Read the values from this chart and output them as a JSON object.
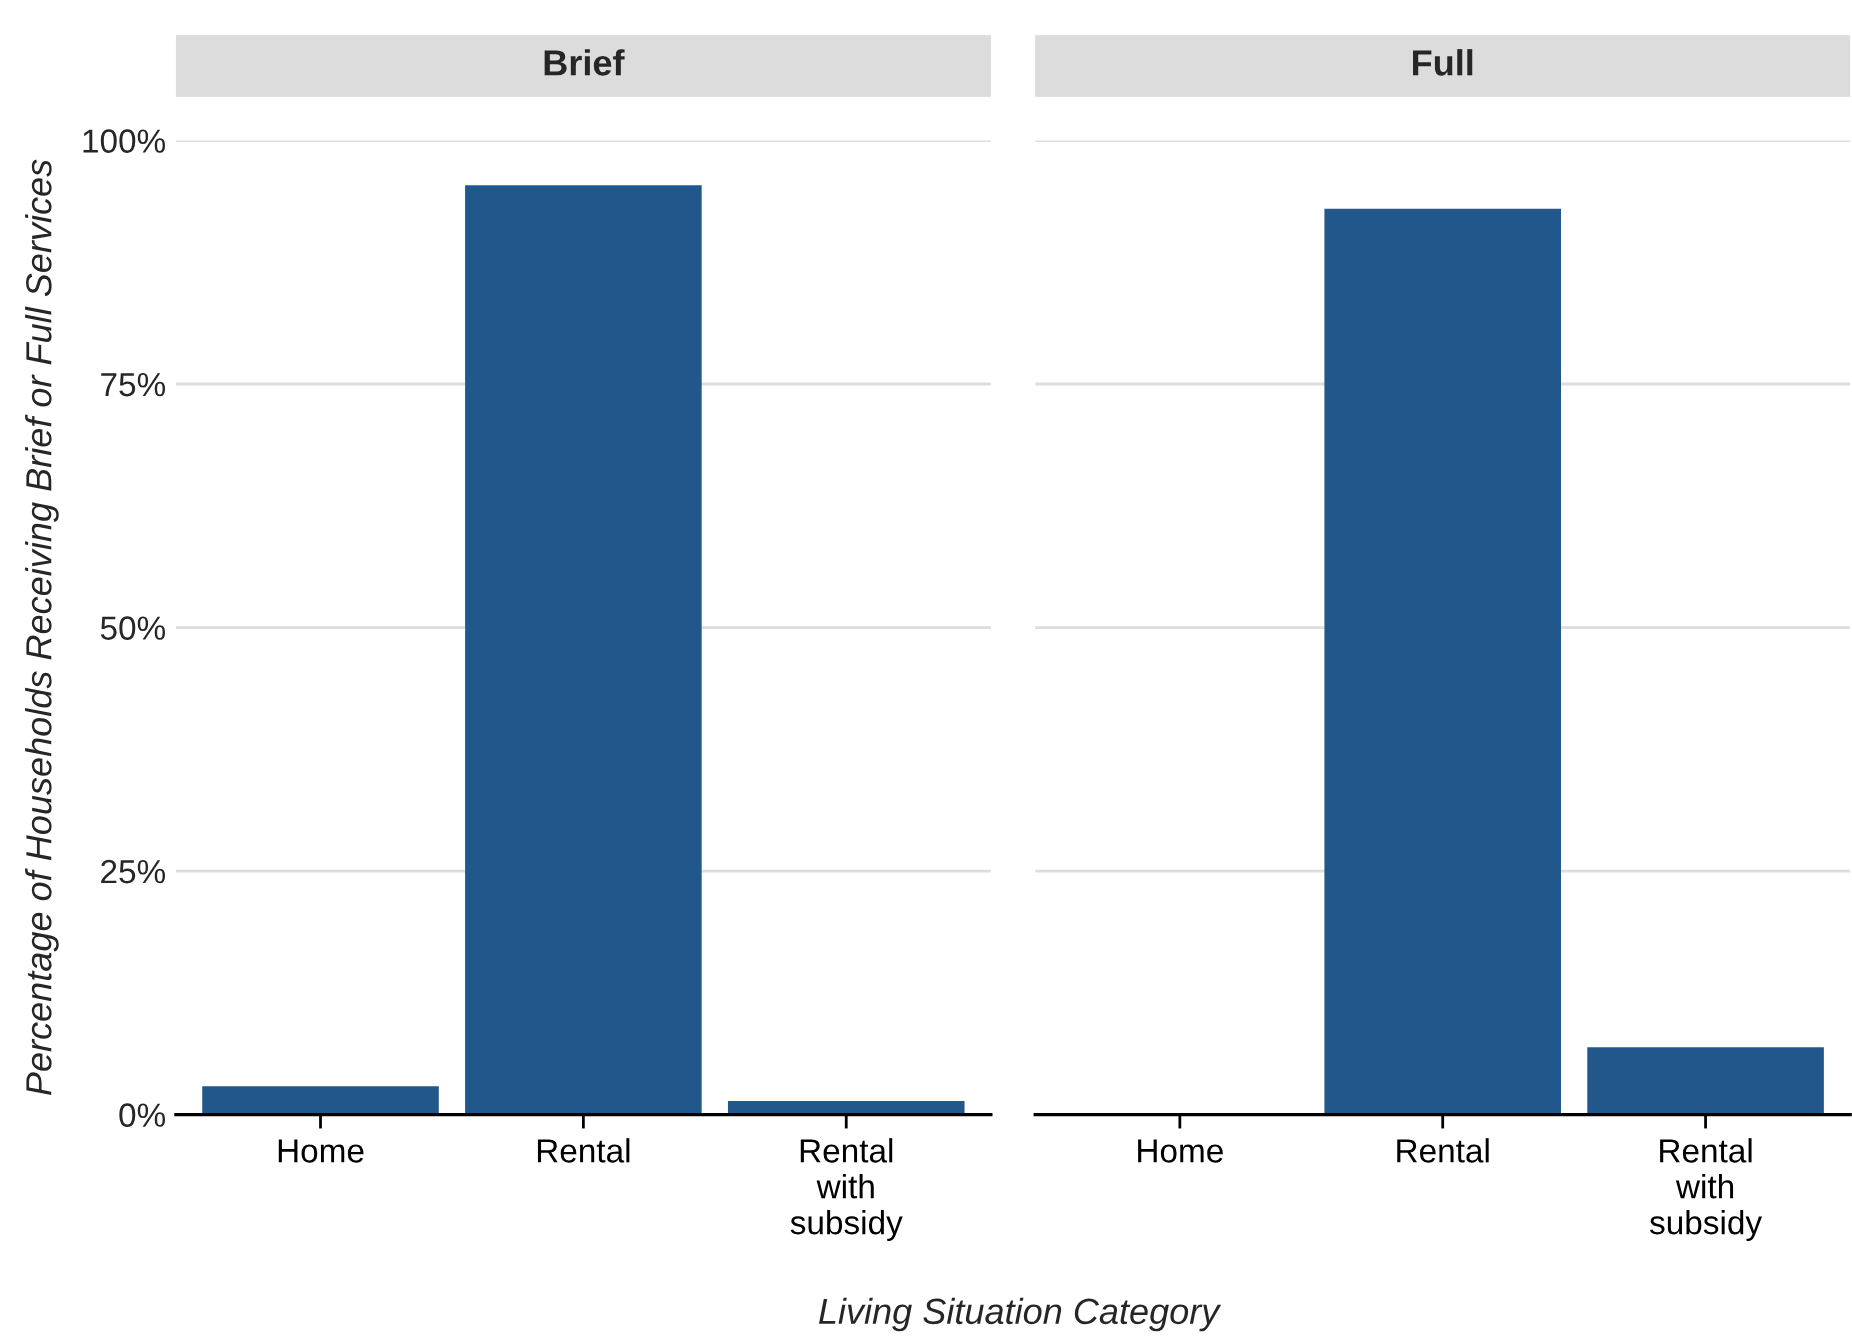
{
  "chart_data": [
    {
      "type": "bar",
      "title": "Brief",
      "xlabel": "Living Situation Category",
      "ylabel": "Percentage of Households Receiving Brief or Full Services",
      "categories": [
        "Home",
        "Rental",
        "Rental\nwith\nsubsidy"
      ],
      "values": [
        2.9,
        95.4,
        1.4
      ],
      "color": "#22578b",
      "ylim": [
        0,
        100
      ],
      "yticks": [
        {
          "value": 0,
          "label": "0%"
        },
        {
          "value": 25,
          "label": "25%"
        },
        {
          "value": 50,
          "label": "50%"
        },
        {
          "value": 75,
          "label": "75%"
        },
        {
          "value": 100,
          "label": "100%"
        }
      ],
      "grid": "y"
    },
    {
      "type": "bar",
      "title": "Full",
      "categories": [
        "Home",
        "Rental",
        "Rental\nwith\nsubsidy"
      ],
      "values": [
        0,
        93.0,
        6.9
      ],
      "color": "#22578b",
      "ylim": [
        0,
        100
      ],
      "yticks": [
        {
          "value": 0,
          "label": null
        },
        {
          "value": 25,
          "label": null
        },
        {
          "value": 50,
          "label": null
        },
        {
          "value": 75,
          "label": null
        },
        {
          "value": 100,
          "label": null
        }
      ],
      "grid": "y",
      "tick_labels": "x"
    }
  ]
}
